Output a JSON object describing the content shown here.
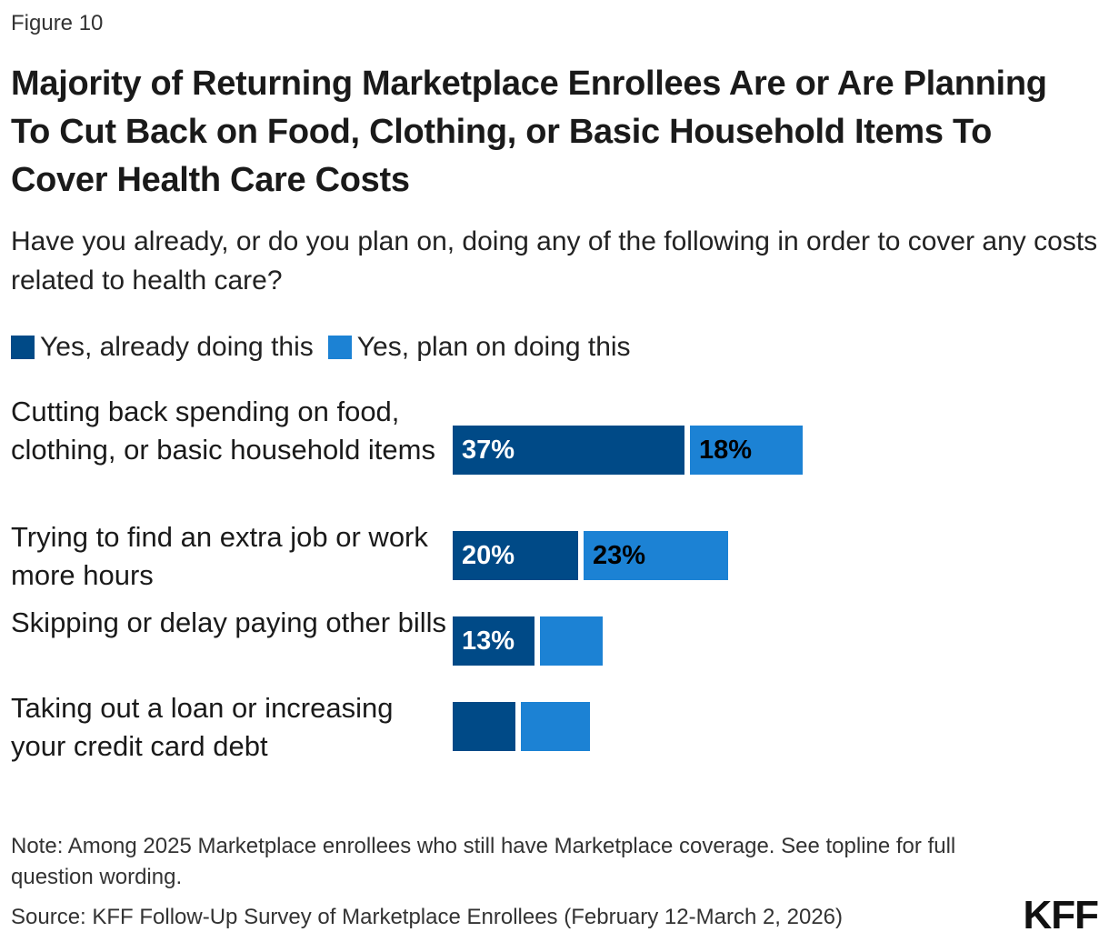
{
  "figure_label": "Figure 10",
  "title": "Majority of Returning Marketplace Enrollees Are or Are Planning To Cut Back on Food, Clothing, or Basic Household Items To Cover Health Care Costs",
  "subtitle": "Have you already, or do you plan on, doing any of the following in order to cover any costs related to health care?",
  "note": "Note: Among 2025 Marketplace enrollees who still have Marketplace coverage. See topline for full question wording.",
  "source": "Source: KFF Follow-Up Survey of Marketplace Enrollees (February 12-March 2, 2026)",
  "logo": "KFF",
  "colors": {
    "already": "#004a87",
    "plan": "#1c82d4",
    "label_on_dark": "#ffffff",
    "label_on_light": "#000000"
  },
  "chart_data": {
    "type": "bar",
    "orientation": "horizontal",
    "stacked": true,
    "legend_placement": "top-left",
    "grid": false,
    "categories": [
      "Cutting back spending on food, clothing, or basic household items",
      "Trying to find an extra job or work more hours",
      "Skipping or delay paying other bills",
      "Taking out a loan or increasing your credit card debt"
    ],
    "series": [
      {
        "name": "Yes, already doing this",
        "values": [
          37,
          20,
          13,
          10
        ],
        "labels": [
          "37%",
          "20%",
          "13%",
          ""
        ]
      },
      {
        "name": "Yes, plan on doing this",
        "values": [
          18,
          23,
          10,
          11
        ],
        "labels": [
          "18%",
          "23%",
          "",
          ""
        ]
      }
    ],
    "xlim": [
      0,
      100
    ]
  }
}
